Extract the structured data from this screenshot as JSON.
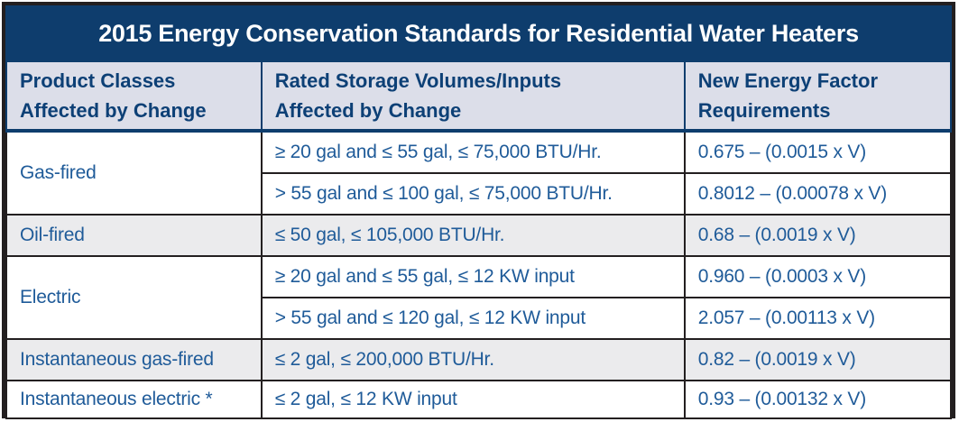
{
  "title": "2015 Energy Conservation Standards for Residential Water Heaters",
  "columns": [
    {
      "label": "Product Classes Affected by Change",
      "line1": "Product Classes",
      "line2": "Affected by Change"
    },
    {
      "label": "Rated Storage Volumes/Inputs Affected by Change",
      "line1": "Rated Storage Volumes/Inputs",
      "line2": "Affected by Change"
    },
    {
      "label": "New Energy Factor Requirements",
      "line1": "New Energy Factor",
      "line2": "Requirements"
    }
  ],
  "groups": [
    {
      "product_class": "Gas-fired",
      "shade": "white",
      "rows": [
        {
          "volume": "≥ 20 gal and ≤ 55 gal, ≤ 75,000 BTU/Hr.",
          "requirement": "0.675 – (0.0015 x V)"
        },
        {
          "volume": "> 55 gal and ≤ 100 gal, ≤ 75,000 BTU/Hr.",
          "requirement": "0.8012 – (0.00078 x V)"
        }
      ]
    },
    {
      "product_class": "Oil-fired",
      "shade": "gray",
      "rows": [
        {
          "volume": "≤ 50 gal, ≤ 105,000 BTU/Hr.",
          "requirement": "0.68 – (0.0019 x V)"
        }
      ]
    },
    {
      "product_class": "Electric",
      "shade": "white",
      "rows": [
        {
          "volume": "≥ 20 gal and ≤ 55 gal, ≤ 12 KW input",
          "requirement": "0.960 – (0.0003 x V)"
        },
        {
          "volume": "> 55 gal and ≤ 120 gal, ≤ 12 KW input",
          "requirement": "2.057 – (0.00113 x V)"
        }
      ]
    },
    {
      "product_class": "Instantaneous gas-fired",
      "shade": "gray",
      "rows": [
        {
          "volume": "≤ 2 gal, ≤ 200,000 BTU/Hr.",
          "requirement": "0.82 – (0.0019 x V)"
        }
      ]
    },
    {
      "product_class": "Instantaneous electric *",
      "shade": "white",
      "rows": [
        {
          "volume": "≤ 2 gal, ≤ 12 KW input",
          "requirement": "0.93 – (0.00132 x V)"
        }
      ]
    }
  ],
  "chart_data": {
    "type": "table",
    "title": "2015 Energy Conservation Standards for Residential Water Heaters",
    "columns": [
      "Product Classes Affected by Change",
      "Rated Storage Volumes/Inputs Affected by Change",
      "New Energy Factor Requirements"
    ],
    "rows": [
      [
        "Gas-fired",
        "≥ 20 gal and ≤ 55 gal, ≤ 75,000 BTU/Hr.",
        "0.675 – (0.0015 x V)"
      ],
      [
        "Gas-fired",
        "> 55 gal and ≤ 100 gal, ≤ 75,000 BTU/Hr.",
        "0.8012 – (0.00078 x V)"
      ],
      [
        "Oil-fired",
        "≤ 50 gal, ≤ 105,000 BTU/Hr.",
        "0.68 – (0.0019 x V)"
      ],
      [
        "Electric",
        "≥ 20 gal and ≤ 55 gal, ≤ 12 KW input",
        "0.960 – (0.0003 x V)"
      ],
      [
        "Electric",
        "> 55 gal and ≤ 120 gal, ≤ 12 KW input",
        "2.057 – (0.00113 x V)"
      ],
      [
        "Instantaneous gas-fired",
        "≤ 2 gal, ≤ 200,000 BTU/Hr.",
        "0.82 – (0.0019 x V)"
      ],
      [
        "Instantaneous electric *",
        "≤ 2 gal, ≤ 12 KW input",
        "0.93 – (0.00132 x V)"
      ]
    ]
  },
  "colors": {
    "frame_border": "#231f20",
    "title_bar_bg": "#0e3d6d",
    "title_text": "#ffffff",
    "header_bg": "#dcdee9",
    "header_text": "#0d4076",
    "body_text": "#1f5b99",
    "gray_row_bg": "#ebebed",
    "white_row_bg": "#ffffff"
  }
}
